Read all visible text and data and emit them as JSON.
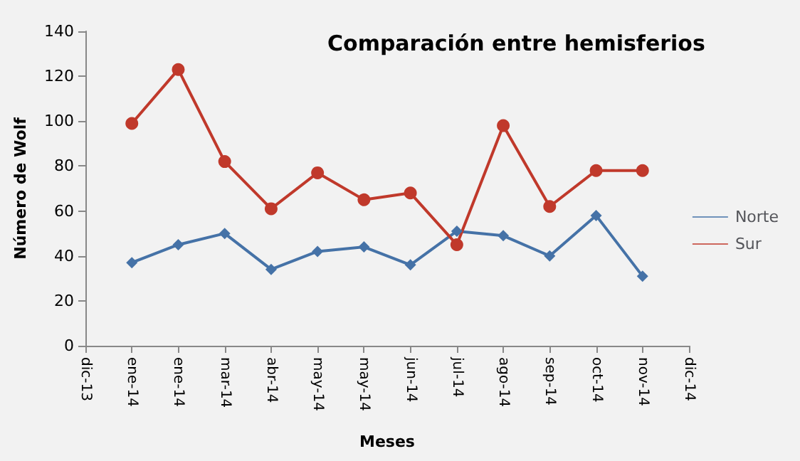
{
  "chart_data": {
    "type": "line",
    "title": "Comparación entre hemisferios",
    "xlabel": "Meses",
    "ylabel": "Número de Wolf",
    "categories": [
      "dic-13",
      "ene-14",
      "ene-14",
      "mar-14",
      "abr-14",
      "may-14",
      "may-14",
      "jun-14",
      "jul-14",
      "ago-14",
      "sep-14",
      "oct-14",
      "nov-14",
      "dic-14"
    ],
    "series": [
      {
        "name": "Norte",
        "color": "#4572a7",
        "marker": "diamond",
        "values": [
          null,
          37,
          45,
          50,
          34,
          42,
          44,
          36,
          51,
          49,
          40,
          58,
          31,
          null
        ]
      },
      {
        "name": "Sur",
        "color": "#c0392b",
        "marker": "circle",
        "values": [
          null,
          99,
          123,
          82,
          61,
          77,
          65,
          68,
          45,
          98,
          62,
          78,
          78,
          null
        ]
      }
    ],
    "ylim": [
      0,
      140
    ],
    "yticks": [
      0,
      20,
      40,
      60,
      80,
      100,
      120,
      140
    ],
    "grid": false,
    "legend": "right"
  }
}
